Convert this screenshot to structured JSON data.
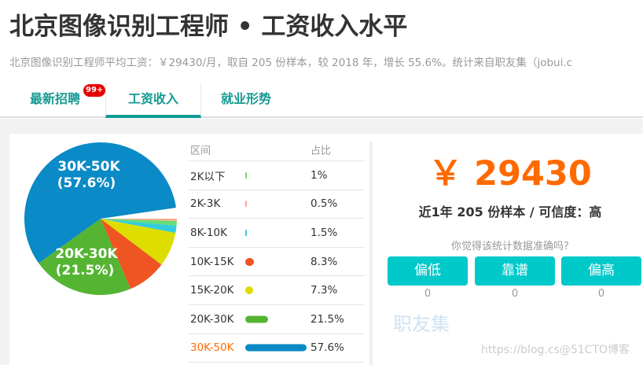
{
  "header": {
    "title": "北京图像识别工程师 • 工资收入水平",
    "subtitle": "北京图像识别工程师平均工资：￥29430/月，取自 205 份样本，较 2018 年，增长 55.6%。统计来自职友集（jobui.c"
  },
  "tabs": [
    {
      "label": "最新招聘",
      "badge": "99+"
    },
    {
      "label": "工资收入",
      "active": true
    },
    {
      "label": "就业形势"
    }
  ],
  "table": {
    "headers": [
      "区间",
      "占比"
    ],
    "highlight_color": "#ff6a00",
    "rows": [
      {
        "range": "2K以下",
        "percent": "1%",
        "value": 1,
        "color": "#66dd77"
      },
      {
        "range": "2K-3K",
        "percent": "0.5%",
        "value": 0.5,
        "color": "#ffaa88"
      },
      {
        "range": "8K-10K",
        "percent": "1.5%",
        "value": 1.5,
        "color": "#33ccdd"
      },
      {
        "range": "10K-15K",
        "percent": "8.3%",
        "value": 8.3,
        "color": "#ee5522"
      },
      {
        "range": "15K-20K",
        "percent": "7.3%",
        "value": 7.3,
        "color": "#dddd00"
      },
      {
        "range": "20K-30K",
        "percent": "21.5%",
        "value": 21.5,
        "color": "#55b533"
      },
      {
        "range": "30K-50K",
        "percent": "57.6%",
        "value": 57.6,
        "color": "#0a8ac6",
        "highlight": true
      }
    ]
  },
  "pie": {
    "labels": [
      {
        "name": "30K-50K",
        "pct": "(57.6%)"
      },
      {
        "name": "20K-30K",
        "pct": "(21.5%)"
      }
    ],
    "order": [
      1,
      0,
      2,
      4,
      3,
      5,
      6
    ]
  },
  "summary": {
    "salary": "￥ 29430",
    "samples": "近1年 205 份样本 / 可信度：高",
    "question": "你觉得该统计数据准确吗?",
    "votes": [
      {
        "label": "偏低",
        "count": "0"
      },
      {
        "label": "靠谱",
        "count": "0"
      },
      {
        "label": "偏高",
        "count": "0"
      }
    ]
  },
  "watermarks": {
    "site": "职友集",
    "blog": "https://blog.cs@51CTO博客"
  }
}
